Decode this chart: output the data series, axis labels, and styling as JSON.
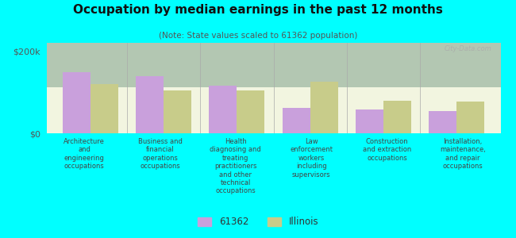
{
  "title": "Occupation by median earnings in the past 12 months",
  "subtitle": "(Note: State values scaled to 61362 population)",
  "background_color": "#00FFFF",
  "plot_bg_color": "#eef2df",
  "categories": [
    "Architecture\nand\nengineering\noccupations",
    "Business and\nfinancial\noperations\noccupations",
    "Health\ndiagnosing and\ntreating\npractitioners\nand other\ntechnical\noccupations",
    "Law\nenforcement\nworkers\nincluding\nsupervisors",
    "Construction\nand extraction\noccupations",
    "Installation,\nmaintenance,\nand repair\noccupations"
  ],
  "values_61362": [
    148000,
    138000,
    115000,
    62000,
    58000,
    55000
  ],
  "values_illinois": [
    120000,
    105000,
    105000,
    125000,
    80000,
    78000
  ],
  "color_61362": "#c9a0dc",
  "color_illinois": "#c8cc8a",
  "ylim": [
    0,
    220000
  ],
  "yticks": [
    0,
    200000
  ],
  "ytick_labels": [
    "$0",
    "$200k"
  ],
  "legend_61362": "61362",
  "legend_illinois": "Illinois",
  "bar_width": 0.38,
  "watermark": "City-Data.com"
}
